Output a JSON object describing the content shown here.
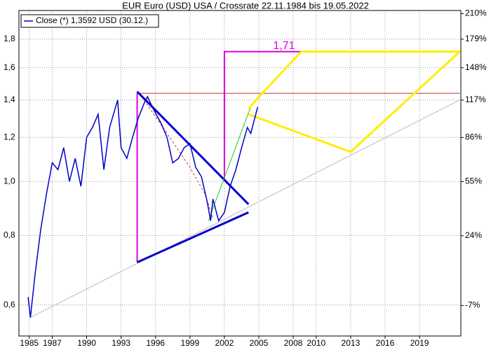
{
  "chart_data": {
    "type": "line",
    "title": "EUR Euro (USD) USA / Crossrate 22.11.1984 bis 19.05.2022",
    "log_scale": true,
    "grid": true,
    "legend": "upper-left",
    "xlim": [
      1984.1,
      2022.6
    ],
    "xticks": [
      1985,
      1987,
      1990,
      1993,
      1996,
      1999,
      2002,
      2005,
      2008,
      2010,
      2013,
      2016,
      2019
    ],
    "ylim": [
      0.528,
      2.027
    ],
    "yticks": [
      {
        "value": 0.6,
        "label": "0,6"
      },
      {
        "value": 0.8,
        "label": "0,8"
      },
      {
        "value": 1.0,
        "label": "1,0"
      },
      {
        "value": 1.2,
        "label": "1,2"
      },
      {
        "value": 1.4,
        "label": "1,4"
      },
      {
        "value": 1.6,
        "label": "1,6"
      },
      {
        "value": 1.8,
        "label": "1,8"
      }
    ],
    "y2lim": [
      -18,
      214
    ],
    "y2scale": "log-growth",
    "y2ticks": [
      {
        "value": -7,
        "label": "-7%"
      },
      {
        "value": 24,
        "label": "24%"
      },
      {
        "value": 55,
        "label": "55%"
      },
      {
        "value": 86,
        "label": "86%"
      },
      {
        "value": 117,
        "label": "117%"
      },
      {
        "value": 148,
        "label": "148%"
      },
      {
        "value": 179,
        "label": "179%"
      },
      {
        "value": 210,
        "label": "210%"
      }
    ],
    "x": [
      1984.9,
      1985.1,
      1985.5,
      1986,
      1986.5,
      1987,
      1987.5,
      1988,
      1988.5,
      1989,
      1989.5,
      1990,
      1990.5,
      1991,
      1991.5,
      1992,
      1992.7,
      1993,
      1993.5,
      1994,
      1994.5,
      1995,
      1995.3,
      1995.8,
      1996.5,
      1997,
      1997.5,
      1998,
      1998.5,
      1999,
      1999.5,
      2000,
      2000.5,
      2000.8,
      2001,
      2001.5,
      2002,
      2002.5,
      2003,
      2003.5,
      2004,
      2004.3,
      2004.9
    ],
    "series": [
      {
        "name": "Close (*) 1,3592 USD (30.12.)",
        "color": "#0000cc",
        "values": [
          0.62,
          0.57,
          0.68,
          0.82,
          0.95,
          1.08,
          1.05,
          1.15,
          1.0,
          1.1,
          0.98,
          1.2,
          1.25,
          1.32,
          1.05,
          1.25,
          1.4,
          1.15,
          1.1,
          1.2,
          1.3,
          1.38,
          1.42,
          1.35,
          1.27,
          1.2,
          1.08,
          1.1,
          1.15,
          1.17,
          1.06,
          1.02,
          0.92,
          0.85,
          0.93,
          0.85,
          0.88,
          0.98,
          1.05,
          1.15,
          1.25,
          1.22,
          1.36
        ]
      }
    ],
    "shapes": [
      {
        "color": "#bbbbbb",
        "width": 1,
        "x": [
          1985.1,
          2022.5
        ],
        "y": [
          0.57,
          1.4
        ]
      },
      {
        "color": "#cc3333",
        "width": 1,
        "x": [
          1994.4,
          2022.5
        ],
        "y": [
          1.44,
          1.44
        ]
      },
      {
        "color": "#dd00dd",
        "width": 2,
        "x": [
          1994.4,
          1994.4
        ],
        "y": [
          0.716,
          1.44
        ]
      },
      {
        "color": "#dd00dd",
        "width": 2,
        "x": [
          2002.0,
          2002.0,
          2008.7
        ],
        "y": [
          1.01,
          1.71,
          1.71
        ]
      },
      {
        "color": "#0000cc",
        "width": 3,
        "x": [
          1994.4,
          2004.1
        ],
        "y": [
          1.45,
          0.91
        ]
      },
      {
        "color": "#0000cc",
        "width": 3,
        "x": [
          1994.4,
          2004.1
        ],
        "y": [
          0.716,
          0.88
        ]
      },
      {
        "color": "#22cc22",
        "width": 1,
        "x": [
          2000.6,
          2004.4
        ],
        "y": [
          0.85,
          1.38
        ]
      },
      {
        "color": "#cc3333",
        "width": 1,
        "dash": true,
        "x": [
          1995,
          1997,
          1999,
          2000.3,
          2001
        ],
        "y": [
          1.4,
          1.22,
          1.06,
          0.95,
          0.86
        ]
      },
      {
        "color": "#ffee00",
        "width": 3,
        "x": [
          2004.1,
          2005.3,
          2008.7,
          2022.5,
          2013,
          2004.1
        ],
        "y": [
          1.35,
          1.44,
          1.71,
          1.71,
          1.13,
          1.32
        ]
      }
    ],
    "annotations": [
      {
        "text": "1,71",
        "x": 2007.2,
        "y": 1.75,
        "color": "#dd00dd"
      }
    ]
  }
}
